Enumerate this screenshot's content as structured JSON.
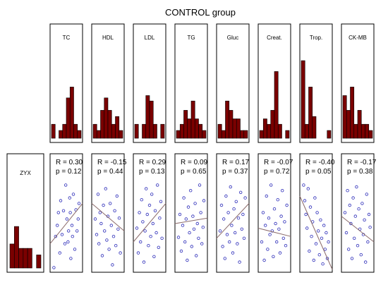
{
  "title": "CONTROL group",
  "colors": {
    "bar_fill": "#7a0000",
    "bar_stroke": "#000000",
    "point": "#2a2ab8",
    "line": "#8a6a6a",
    "frame": "#000000"
  },
  "chart_data": {
    "type": "scatter",
    "title": "CONTROL group",
    "row_variable": "ZYX",
    "row_histogram": [
      0.55,
      0.95,
      0.45,
      0.45,
      0.45,
      0.0,
      0.3
    ],
    "variables": [
      {
        "name": "TC",
        "histogram": [
          0.18,
          0.0,
          0.1,
          0.18,
          0.52,
          0.66,
          0.18,
          0.1
        ],
        "stats": {
          "R": "R = 0.30",
          "p": "p = 0.12"
        },
        "points": [
          [
            0.06,
            0.02
          ],
          [
            0.12,
            0.36
          ],
          [
            0.18,
            0.48
          ],
          [
            0.22,
            0.62
          ],
          [
            0.27,
            0.18
          ],
          [
            0.3,
            0.75
          ],
          [
            0.35,
            0.38
          ],
          [
            0.4,
            0.64
          ],
          [
            0.45,
            0.28
          ],
          [
            0.48,
            0.92
          ],
          [
            0.52,
            0.55
          ],
          [
            0.56,
            0.3
          ],
          [
            0.58,
            0.42
          ],
          [
            0.62,
            0.78
          ],
          [
            0.64,
            0.62
          ],
          [
            0.66,
            0.12
          ],
          [
            0.7,
            0.48
          ],
          [
            0.72,
            0.36
          ],
          [
            0.75,
            0.82
          ],
          [
            0.8,
            0.22
          ],
          [
            0.84,
            0.65
          ],
          [
            0.88,
            0.42
          ],
          [
            0.92,
            0.55
          ],
          [
            0.95,
            0.72
          ]
        ],
        "fit": [
          0.28,
          0.72
        ]
      },
      {
        "name": "HDL",
        "histogram": [
          0.18,
          0.1,
          0.36,
          0.52,
          0.36,
          0.18,
          0.28,
          0.1
        ],
        "stats": {
          "R": "R = -0.15",
          "p": "p = 0.44"
        },
        "points": [
          [
            0.05,
            0.55
          ],
          [
            0.1,
            0.38
          ],
          [
            0.15,
            0.82
          ],
          [
            0.18,
            0.28
          ],
          [
            0.22,
            0.62
          ],
          [
            0.26,
            0.5
          ],
          [
            0.3,
            0.15
          ],
          [
            0.34,
            0.7
          ],
          [
            0.38,
            0.42
          ],
          [
            0.42,
            0.88
          ],
          [
            0.46,
            0.32
          ],
          [
            0.5,
            0.58
          ],
          [
            0.54,
            0.22
          ],
          [
            0.58,
            0.72
          ],
          [
            0.62,
            0.48
          ],
          [
            0.66,
            0.05
          ],
          [
            0.7,
            0.36
          ],
          [
            0.74,
            0.64
          ],
          [
            0.78,
            0.26
          ],
          [
            0.82,
            0.8
          ],
          [
            0.86,
            0.44
          ],
          [
            0.9,
            0.56
          ],
          [
            0.94,
            0.18
          ]
        ],
        "fit": [
          0.72,
          0.42
        ]
      },
      {
        "name": "LDL",
        "histogram": [
          0.18,
          0.0,
          0.18,
          0.55,
          0.48,
          0.18,
          0.0,
          0.18
        ],
        "stats": {
          "R": "R = 0.29",
          "p": "p = 0.13"
        },
        "points": [
          [
            0.05,
            0.45
          ],
          [
            0.1,
            0.18
          ],
          [
            0.14,
            0.62
          ],
          [
            0.18,
            0.3
          ],
          [
            0.22,
            0.76
          ],
          [
            0.26,
            0.52
          ],
          [
            0.3,
            0.08
          ],
          [
            0.34,
            0.42
          ],
          [
            0.38,
            0.88
          ],
          [
            0.42,
            0.6
          ],
          [
            0.46,
            0.26
          ],
          [
            0.5,
            0.7
          ],
          [
            0.54,
            0.36
          ],
          [
            0.58,
            0.82
          ],
          [
            0.62,
            0.5
          ],
          [
            0.66,
            0.14
          ],
          [
            0.7,
            0.64
          ],
          [
            0.74,
            0.4
          ],
          [
            0.78,
            0.92
          ],
          [
            0.82,
            0.24
          ],
          [
            0.86,
            0.56
          ],
          [
            0.9,
            0.74
          ],
          [
            0.94,
            0.34
          ]
        ],
        "fit": [
          0.3,
          0.72
        ]
      },
      {
        "name": "TG",
        "histogram": [
          0.1,
          0.18,
          0.36,
          0.25,
          0.48,
          0.25,
          0.18,
          0.1
        ],
        "stats": {
          "R": "R = 0.09",
          "p": "p = 0.65"
        },
        "points": [
          [
            0.05,
            0.35
          ],
          [
            0.1,
            0.6
          ],
          [
            0.15,
            0.2
          ],
          [
            0.2,
            0.48
          ],
          [
            0.24,
            0.78
          ],
          [
            0.28,
            0.3
          ],
          [
            0.32,
            0.55
          ],
          [
            0.36,
            0.1
          ],
          [
            0.4,
            0.68
          ],
          [
            0.44,
            0.4
          ],
          [
            0.48,
            0.86
          ],
          [
            0.52,
            0.25
          ],
          [
            0.56,
            0.58
          ],
          [
            0.6,
            0.44
          ],
          [
            0.64,
            0.72
          ],
          [
            0.68,
            0.15
          ],
          [
            0.72,
            0.5
          ],
          [
            0.76,
            0.34
          ],
          [
            0.8,
            0.92
          ],
          [
            0.84,
            0.62
          ],
          [
            0.88,
            0.28
          ],
          [
            0.92,
            0.46
          ],
          [
            0.95,
            0.75
          ]
        ],
        "fit": [
          0.5,
          0.56
        ]
      },
      {
        "name": "Gluc",
        "histogram": [
          0.18,
          0.1,
          0.48,
          0.36,
          0.25,
          0.25,
          0.1,
          0.1
        ],
        "stats": {
          "R": "R = 0.17",
          "p": "p = 0.37"
        },
        "points": [
          [
            0.05,
            0.42
          ],
          [
            0.1,
            0.7
          ],
          [
            0.14,
            0.25
          ],
          [
            0.18,
            0.55
          ],
          [
            0.22,
            0.12
          ],
          [
            0.26,
            0.8
          ],
          [
            0.3,
            0.38
          ],
          [
            0.34,
            0.62
          ],
          [
            0.38,
            0.3
          ],
          [
            0.42,
            0.9
          ],
          [
            0.46,
            0.48
          ],
          [
            0.5,
            0.18
          ],
          [
            0.54,
            0.66
          ],
          [
            0.58,
            0.4
          ],
          [
            0.62,
            0.74
          ],
          [
            0.66,
            0.28
          ],
          [
            0.7,
            0.56
          ],
          [
            0.74,
            0.08
          ],
          [
            0.78,
            0.84
          ],
          [
            0.82,
            0.44
          ],
          [
            0.86,
            0.6
          ],
          [
            0.9,
            0.34
          ],
          [
            0.94,
            0.78
          ]
        ],
        "fit": [
          0.34,
          0.72
        ]
      },
      {
        "name": "Creat.",
        "histogram": [
          0.1,
          0.25,
          0.18,
          0.36,
          0.86,
          0.18,
          0.0,
          0.1
        ],
        "stats": {
          "R": "R = -0.07",
          "p": "p = 0.72"
        },
        "points": [
          [
            0.05,
            0.3
          ],
          [
            0.1,
            0.62
          ],
          [
            0.14,
            0.1
          ],
          [
            0.18,
            0.48
          ],
          [
            0.22,
            0.8
          ],
          [
            0.26,
            0.22
          ],
          [
            0.3,
            0.56
          ],
          [
            0.34,
            0.38
          ],
          [
            0.38,
            0.92
          ],
          [
            0.42,
            0.42
          ],
          [
            0.46,
            0.14
          ],
          [
            0.5,
            0.66
          ],
          [
            0.54,
            0.5
          ],
          [
            0.58,
            0.3
          ],
          [
            0.62,
            0.76
          ],
          [
            0.66,
            0.44
          ],
          [
            0.7,
            0.18
          ],
          [
            0.74,
            0.58
          ],
          [
            0.78,
            0.86
          ],
          [
            0.82,
            0.34
          ],
          [
            0.86,
            0.52
          ],
          [
            0.9,
            0.26
          ],
          [
            0.94,
            0.7
          ]
        ],
        "fit": [
          0.45,
          0.36
        ]
      },
      {
        "name": "Trop.",
        "histogram": [
          1.0,
          0.18,
          0.66,
          0.28,
          0.0,
          0.0,
          0.0,
          0.1
        ],
        "stats": {
          "R": "R = -0.40",
          "p": "p = 0.05"
        },
        "points": [
          [
            0.06,
            0.92
          ],
          [
            0.1,
            0.75
          ],
          [
            0.14,
            0.6
          ],
          [
            0.18,
            0.45
          ],
          [
            0.22,
            0.88
          ],
          [
            0.26,
            0.2
          ],
          [
            0.3,
            0.68
          ],
          [
            0.34,
            0.36
          ],
          [
            0.38,
            0.52
          ],
          [
            0.42,
            0.1
          ],
          [
            0.46,
            0.78
          ],
          [
            0.5,
            0.28
          ],
          [
            0.54,
            0.62
          ],
          [
            0.58,
            0.42
          ],
          [
            0.62,
            0.16
          ],
          [
            0.66,
            0.54
          ],
          [
            0.7,
            0.34
          ],
          [
            0.74,
            0.06
          ],
          [
            0.78,
            0.48
          ],
          [
            0.82,
            0.22
          ],
          [
            0.86,
            0.4
          ],
          [
            0.9,
            0.12
          ],
          [
            0.94,
            0.3
          ]
        ],
        "fit": [
          0.8,
          0.0
        ]
      },
      {
        "name": "CK-MB",
        "histogram": [
          0.55,
          0.36,
          0.66,
          0.18,
          0.36,
          0.18,
          0.18,
          0.1
        ],
        "stats": {
          "R": "R = -0.17",
          "p": "p = 0.38"
        },
        "points": [
          [
            0.05,
            0.62
          ],
          [
            0.1,
            0.4
          ],
          [
            0.14,
            0.86
          ],
          [
            0.18,
            0.22
          ],
          [
            0.22,
            0.7
          ],
          [
            0.26,
            0.5
          ],
          [
            0.3,
            0.12
          ],
          [
            0.34,
            0.78
          ],
          [
            0.38,
            0.34
          ],
          [
            0.42,
            0.58
          ],
          [
            0.46,
            0.9
          ],
          [
            0.5,
            0.26
          ],
          [
            0.54,
            0.66
          ],
          [
            0.58,
            0.44
          ],
          [
            0.62,
            0.16
          ],
          [
            0.66,
            0.72
          ],
          [
            0.7,
            0.38
          ],
          [
            0.74,
            0.54
          ],
          [
            0.78,
            0.08
          ],
          [
            0.82,
            0.82
          ],
          [
            0.86,
            0.3
          ],
          [
            0.9,
            0.6
          ],
          [
            0.94,
            0.46
          ]
        ],
        "fit": [
          0.58,
          0.3
        ]
      }
    ]
  }
}
